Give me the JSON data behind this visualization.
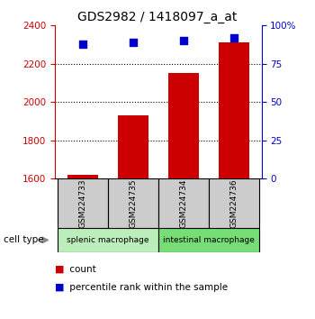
{
  "title": "GDS2982 / 1418097_a_at",
  "samples": [
    "GSM224733",
    "GSM224735",
    "GSM224734",
    "GSM224736"
  ],
  "counts": [
    1620,
    1930,
    2150,
    2310
  ],
  "percentiles": [
    88,
    89,
    90,
    92
  ],
  "ylim_left": [
    1600,
    2400
  ],
  "ylim_right": [
    0,
    100
  ],
  "yticks_left": [
    1600,
    1800,
    2000,
    2200,
    2400
  ],
  "yticks_right": [
    0,
    25,
    50,
    75,
    100
  ],
  "ytick_labels_right": [
    "0",
    "25",
    "50",
    "75",
    "100%"
  ],
  "bar_color": "#cc0000",
  "dot_color": "#0000cc",
  "bar_width": 0.6,
  "cell_types": [
    {
      "label": "splenic macrophage",
      "samples": [
        0,
        1
      ],
      "color": "#bbeebb"
    },
    {
      "label": "intestinal macrophage",
      "samples": [
        2,
        3
      ],
      "color": "#77dd77"
    }
  ],
  "legend_count_label": "count",
  "legend_pct_label": "percentile rank within the sample",
  "cell_type_label": "cell type",
  "sample_box_color": "#cccccc",
  "left_tick_color": "#cc0000",
  "right_tick_color": "#0000cc"
}
